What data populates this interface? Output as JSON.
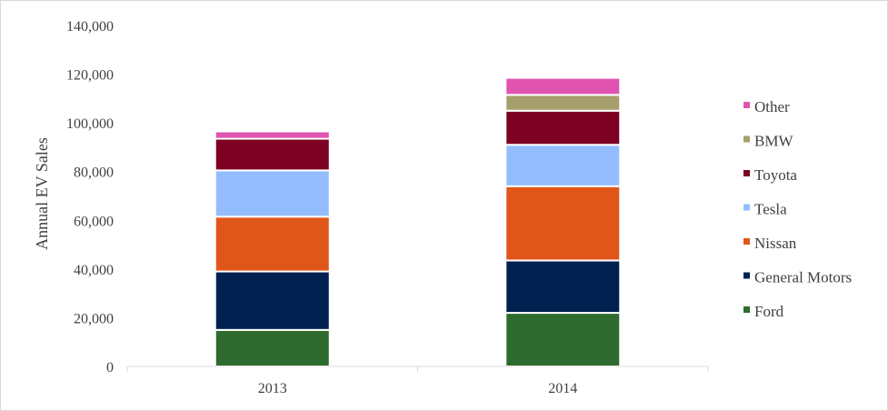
{
  "chart_data": {
    "type": "bar",
    "stacked": true,
    "title": "",
    "xlabel": "",
    "ylabel": "Annual EV Sales",
    "ylim": [
      0,
      140000
    ],
    "yticks": [
      0,
      20000,
      40000,
      60000,
      80000,
      100000,
      120000,
      140000
    ],
    "ytick_labels": [
      "0",
      "20,000",
      "40,000",
      "60,000",
      "80,000",
      "100,000",
      "120,000",
      "140,000"
    ],
    "grid": false,
    "legend_position": "right",
    "categories": [
      "2013",
      "2014"
    ],
    "series": [
      {
        "name": "Ford",
        "color": "#2e6b2e",
        "values": [
          15000,
          22000
        ]
      },
      {
        "name": "General Motors",
        "color": "#002050",
        "values": [
          24000,
          21500
        ]
      },
      {
        "name": "Nissan",
        "color": "#e0561a",
        "values": [
          22500,
          30500
        ]
      },
      {
        "name": "Tesla",
        "color": "#94bdfd",
        "values": [
          19000,
          17000
        ]
      },
      {
        "name": "Toyota",
        "color": "#7d0022",
        "values": [
          13000,
          14000
        ]
      },
      {
        "name": "BMW",
        "color": "#a69f6c",
        "values": [
          0,
          6500
        ]
      },
      {
        "name": "Other",
        "color": "#e054b0",
        "values": [
          3000,
          7000
        ]
      }
    ]
  }
}
